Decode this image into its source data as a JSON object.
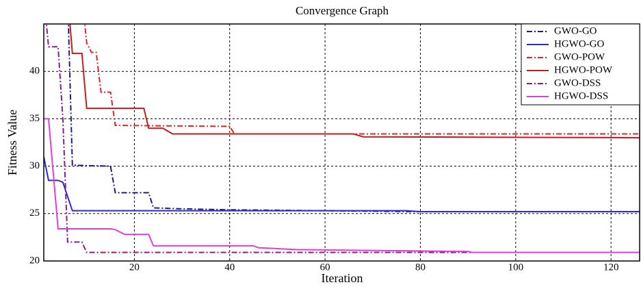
{
  "chart_data": {
    "type": "line",
    "title": "Convergence Graph",
    "x_label": "Iteration",
    "y_label": "Fitness Value",
    "xlim": [
      1,
      126
    ],
    "ylim": [
      20,
      45
    ],
    "xticks": [
      20,
      40,
      60,
      80,
      100,
      120
    ],
    "yticks": [
      20,
      25,
      30,
      35,
      40
    ],
    "grid": true,
    "legend": "top-right",
    "series": [
      {
        "name": "GWO-GO",
        "color": "#1c1c8c",
        "style": "dashdot",
        "x": [
          6,
          7,
          15,
          16,
          23,
          24,
          30,
          40,
          80,
          126
        ],
        "values": [
          48,
          30.1,
          30,
          27.2,
          27.2,
          25.6,
          25.5,
          25.4,
          25.2,
          25.2
        ]
      },
      {
        "name": "HGWO-GO",
        "color": "#2a2ad0",
        "style": "solid",
        "x": [
          1,
          2,
          4,
          5,
          7,
          77,
          80,
          126
        ],
        "values": [
          31,
          28.5,
          28.5,
          28.3,
          25.3,
          25.3,
          25.2,
          25.2
        ]
      },
      {
        "name": "GWO-POW",
        "color": "#e02424",
        "style": "dashdot",
        "x": [
          9,
          10,
          11,
          12,
          13,
          15,
          16,
          40,
          41,
          126
        ],
        "values": [
          48,
          43,
          42,
          42,
          37.8,
          37.8,
          34.3,
          34.2,
          33.4,
          33.4
        ]
      },
      {
        "name": "HGWO-POW",
        "color": "#c41c1c",
        "style": "solid",
        "x": [
          6,
          7,
          9,
          10,
          22,
          23,
          26,
          28,
          66,
          68,
          126
        ],
        "values": [
          48,
          41.9,
          41.9,
          36.1,
          36.1,
          34,
          34,
          33.4,
          33.4,
          33.1,
          33
        ]
      },
      {
        "name": "GWO-DSS",
        "color": "#8c1a8c",
        "style": "dashdot",
        "x": [
          1,
          2,
          4,
          5,
          6,
          9,
          10,
          126
        ],
        "values": [
          48,
          42.6,
          42.6,
          35,
          22,
          22,
          20.9,
          20.9
        ]
      },
      {
        "name": "HGWO-DSS",
        "color": "#e03ce0",
        "style": "solid",
        "x": [
          1,
          2,
          4,
          15,
          16,
          18,
          23,
          24,
          45,
          46,
          54,
          90,
          91,
          126
        ],
        "values": [
          35,
          35,
          23.4,
          23.4,
          23.3,
          22.8,
          22.8,
          21.6,
          21.6,
          21.4,
          21.2,
          21,
          20.9,
          20.9
        ]
      }
    ]
  }
}
